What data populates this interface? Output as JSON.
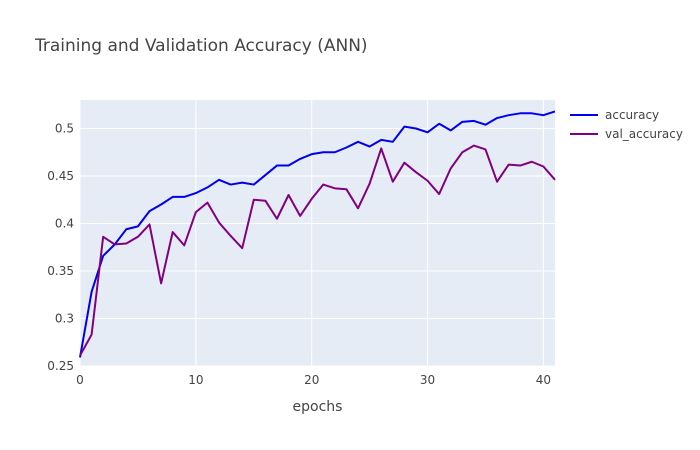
{
  "chart_data": {
    "type": "line",
    "title": "Training and Validation Accuracy (ANN)",
    "xlabel": "epochs",
    "ylabel": "",
    "xlim": [
      0,
      41
    ],
    "ylim": [
      0.25,
      0.53
    ],
    "xticks": [
      0,
      10,
      20,
      30,
      40
    ],
    "xtick_labels": [
      "0",
      "10",
      "20",
      "30",
      "40"
    ],
    "yticks": [
      0.25,
      0.3,
      0.35,
      0.4,
      0.45,
      0.5
    ],
    "ytick_labels": [
      "0.25",
      "0.3",
      "0.35",
      "0.4",
      "0.45",
      "0.5"
    ],
    "grid": true,
    "legend_position": "top-right",
    "background_color": "#e5ecf6",
    "x": [
      0,
      1,
      2,
      3,
      4,
      5,
      6,
      7,
      8,
      9,
      10,
      11,
      12,
      13,
      14,
      15,
      16,
      17,
      18,
      19,
      20,
      21,
      22,
      23,
      24,
      25,
      26,
      27,
      28,
      29,
      30,
      31,
      32,
      33,
      34,
      35,
      36,
      37,
      38,
      39,
      40,
      41
    ],
    "series": [
      {
        "name": "accuracy",
        "color": "#0000ee",
        "values": [
          0.259,
          0.328,
          0.366,
          0.378,
          0.394,
          0.397,
          0.413,
          0.42,
          0.428,
          0.428,
          0.432,
          0.438,
          0.446,
          0.441,
          0.443,
          0.441,
          0.451,
          0.461,
          0.461,
          0.468,
          0.473,
          0.475,
          0.475,
          0.48,
          0.486,
          0.481,
          0.488,
          0.486,
          0.502,
          0.5,
          0.496,
          0.505,
          0.498,
          0.507,
          0.508,
          0.504,
          0.511,
          0.514,
          0.516,
          0.516,
          0.514,
          0.518
        ]
      },
      {
        "name": "val_accuracy",
        "color": "#800080",
        "values": [
          0.261,
          0.283,
          0.386,
          0.378,
          0.379,
          0.386,
          0.399,
          0.337,
          0.391,
          0.377,
          0.412,
          0.422,
          0.401,
          0.387,
          0.374,
          0.425,
          0.424,
          0.405,
          0.43,
          0.408,
          0.426,
          0.441,
          0.437,
          0.436,
          0.416,
          0.442,
          0.479,
          0.444,
          0.464,
          0.454,
          0.445,
          0.431,
          0.458,
          0.475,
          0.482,
          0.478,
          0.444,
          0.462,
          0.461,
          0.465,
          0.46,
          0.446
        ]
      }
    ]
  }
}
